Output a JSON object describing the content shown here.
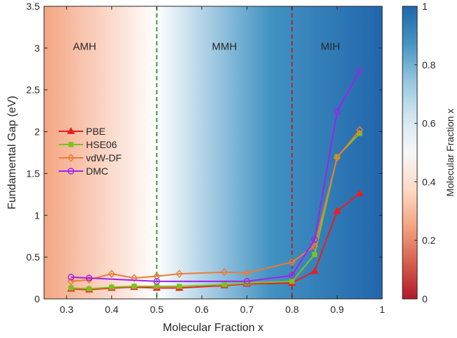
{
  "chart_data": {
    "type": "line",
    "xlabel": "Molecular Fraction x",
    "ylabel": "Fundamental Gap (eV)",
    "xlim": [
      0.25,
      1.0
    ],
    "ylim": [
      0,
      3.5
    ],
    "xticks": [
      0.3,
      0.4,
      0.5,
      0.6,
      0.7,
      0.8,
      0.9,
      1
    ],
    "xtick_labels": [
      "0.3",
      "0.4",
      "0.5",
      "0.6",
      "0.7",
      "0.8",
      "0.9",
      "1"
    ],
    "yticks": [
      0,
      0.5,
      1,
      1.5,
      2,
      2.5,
      3,
      3.5
    ],
    "ytick_labels": [
      "0",
      "0.5",
      "1",
      "1.5",
      "2",
      "2.5",
      "3",
      "3.5"
    ],
    "grid": false,
    "legend_position": "middle-left",
    "background_gradient": {
      "colors": [
        "#f4a582",
        "#ffffff",
        "#4393c3",
        "#2166ac"
      ],
      "description": "shading by molecular fraction"
    },
    "regions": [
      {
        "label": "AMH",
        "x": 0.34
      },
      {
        "label": "MMH",
        "x": 0.65
      },
      {
        "label": "MIH",
        "x": 0.885
      }
    ],
    "boundaries": [
      {
        "x": 0.5,
        "color": "#2ca02c"
      },
      {
        "x": 0.8,
        "color": "#a52a2a"
      }
    ],
    "colorbar": {
      "label": "Molecular Fraction x",
      "ticks": [
        0,
        0.2,
        0.4,
        0.6,
        0.8,
        1
      ],
      "tick_labels": [
        "0",
        "0.2",
        "0.4",
        "0.6",
        "0.8",
        "1"
      ],
      "colors": [
        "#b2182b",
        "#d6604d",
        "#f4a582",
        "#fddbc7",
        "#f7f7f7",
        "#d1e5f0",
        "#92c5de",
        "#4393c3",
        "#2166ac"
      ]
    },
    "series": [
      {
        "name": "PBE",
        "color": "#ee1c1c",
        "marker": "triangle",
        "x": [
          0.31,
          0.35,
          0.4,
          0.45,
          0.5,
          0.55,
          0.65,
          0.7,
          0.8,
          0.85,
          0.9,
          0.95
        ],
        "y": [
          0.12,
          0.11,
          0.13,
          0.14,
          0.13,
          0.13,
          0.16,
          0.18,
          0.19,
          0.33,
          1.05,
          1.26
        ]
      },
      {
        "name": "HSE06",
        "color": "#7ec11f",
        "marker": "square",
        "x": [
          0.31,
          0.35,
          0.4,
          0.45,
          0.5,
          0.55,
          0.65,
          0.7,
          0.8,
          0.85,
          0.9,
          0.95
        ],
        "y": [
          0.13,
          0.12,
          0.14,
          0.15,
          0.15,
          0.15,
          0.17,
          0.19,
          0.21,
          0.53,
          1.7,
          1.98
        ]
      },
      {
        "name": "vdW-DF",
        "color": "#ee7a35",
        "marker": "diamond",
        "x": [
          0.31,
          0.35,
          0.4,
          0.45,
          0.5,
          0.55,
          0.65,
          0.7,
          0.8,
          0.85,
          0.9,
          0.95
        ],
        "y": [
          0.21,
          0.23,
          0.3,
          0.25,
          0.27,
          0.3,
          0.32,
          0.31,
          0.44,
          0.63,
          1.69,
          2.02
        ]
      },
      {
        "name": "DMC",
        "color": "#a020f0",
        "marker": "circle",
        "x": [
          0.31,
          0.35,
          0.5,
          0.7,
          0.8,
          0.85,
          0.9,
          0.95
        ],
        "y": [
          0.26,
          0.25,
          0.21,
          0.21,
          0.28,
          0.71,
          2.24,
          2.73
        ]
      }
    ]
  }
}
